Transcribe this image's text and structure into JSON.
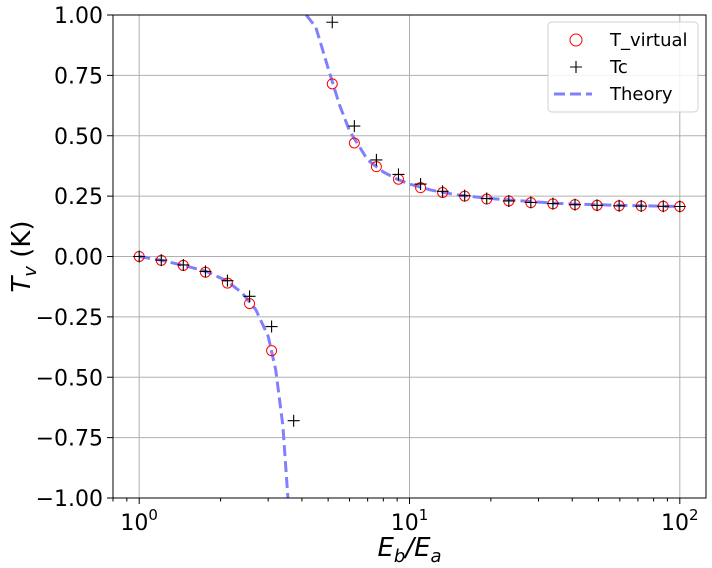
{
  "chart_data": {
    "type": "scatter",
    "xscale": "log",
    "xlim": [
      0.8,
      125
    ],
    "ylim": [
      -1.0,
      1.0
    ],
    "grid": true,
    "legend_position": "top-right",
    "xlabel": {
      "main": "E",
      "sub1": "b",
      "mid": "/E",
      "sub2": "a"
    },
    "ylabel": {
      "main": "T",
      "sub": "v",
      "unit": " (K)"
    },
    "xticks": [
      {
        "value": 1,
        "base": "10",
        "exp": "0"
      },
      {
        "value": 10,
        "base": "10",
        "exp": "1"
      },
      {
        "value": 100,
        "base": "10",
        "exp": "2"
      }
    ],
    "yticks": [
      {
        "value": -1.0,
        "label": "−1.00"
      },
      {
        "value": -0.75,
        "label": "−0.75"
      },
      {
        "value": -0.5,
        "label": "−0.50"
      },
      {
        "value": -0.25,
        "label": "−0.25"
      },
      {
        "value": 0.0,
        "label": "0.00"
      },
      {
        "value": 0.25,
        "label": "0.25"
      },
      {
        "value": 0.5,
        "label": "0.50"
      },
      {
        "value": 0.75,
        "label": "0.75"
      },
      {
        "value": 1.0,
        "label": "1.00"
      }
    ],
    "series": [
      {
        "name": "T_virtual",
        "marker": "circle-open",
        "color": "#ff0000",
        "points": [
          [
            1.0,
            0.0
          ],
          [
            1.207,
            -0.016
          ],
          [
            1.456,
            -0.037
          ],
          [
            1.758,
            -0.065
          ],
          [
            2.121,
            -0.11
          ],
          [
            2.56,
            -0.195
          ],
          [
            3.089,
            -0.39
          ],
          [
            5.179,
            0.715
          ],
          [
            6.251,
            0.47
          ],
          [
            7.543,
            0.372
          ],
          [
            9.103,
            0.32
          ],
          [
            10.99,
            0.285
          ],
          [
            13.26,
            0.265
          ],
          [
            16.0,
            0.25
          ],
          [
            19.31,
            0.238
          ],
          [
            23.3,
            0.23
          ],
          [
            28.12,
            0.223
          ],
          [
            33.93,
            0.218
          ],
          [
            40.95,
            0.215
          ],
          [
            49.42,
            0.212
          ],
          [
            59.64,
            0.21
          ],
          [
            71.97,
            0.209
          ],
          [
            86.85,
            0.208
          ],
          [
            100.0,
            0.207
          ]
        ]
      },
      {
        "name": "Tc",
        "marker": "plus",
        "color": "#000000",
        "points": [
          [
            1.0,
            0.0
          ],
          [
            1.207,
            -0.015
          ],
          [
            1.456,
            -0.035
          ],
          [
            1.758,
            -0.062
          ],
          [
            2.121,
            -0.1
          ],
          [
            2.56,
            -0.165
          ],
          [
            3.089,
            -0.29
          ],
          [
            3.728,
            -0.68
          ],
          [
            5.179,
            0.97
          ],
          [
            6.251,
            0.54
          ],
          [
            7.543,
            0.4
          ],
          [
            9.103,
            0.34
          ],
          [
            10.99,
            0.3
          ],
          [
            13.26,
            0.27
          ],
          [
            16.0,
            0.252
          ],
          [
            19.31,
            0.24
          ],
          [
            23.3,
            0.23
          ],
          [
            28.12,
            0.224
          ],
          [
            33.93,
            0.219
          ],
          [
            40.95,
            0.215
          ],
          [
            49.42,
            0.212
          ],
          [
            59.64,
            0.21
          ],
          [
            71.97,
            0.209
          ],
          [
            86.85,
            0.208
          ],
          [
            100.0,
            0.207
          ]
        ]
      },
      {
        "name": "Theory",
        "line": "dashed",
        "color": "#8080ff",
        "branches": [
          [
            [
              1.0,
              0.0
            ],
            [
              1.2,
              -0.015
            ],
            [
              1.5,
              -0.04
            ],
            [
              1.8,
              -0.065
            ],
            [
              2.1,
              -0.1
            ],
            [
              2.4,
              -0.15
            ],
            [
              2.7,
              -0.22
            ],
            [
              3.0,
              -0.33
            ],
            [
              3.2,
              -0.47
            ],
            [
              3.4,
              -0.7
            ],
            [
              3.55,
              -1.0
            ]
          ],
          [
            [
              4.15,
              1.0
            ],
            [
              4.5,
              0.95
            ],
            [
              5.0,
              0.78
            ],
            [
              5.5,
              0.63
            ],
            [
              6.0,
              0.52
            ],
            [
              7.0,
              0.4
            ],
            [
              8.0,
              0.35
            ],
            [
              9.0,
              0.32
            ],
            [
              10.0,
              0.3
            ],
            [
              12.0,
              0.275
            ],
            [
              15.0,
              0.255
            ],
            [
              20.0,
              0.24
            ],
            [
              30.0,
              0.225
            ],
            [
              40.0,
              0.217
            ],
            [
              60.0,
              0.212
            ],
            [
              80.0,
              0.209
            ],
            [
              100.0,
              0.207
            ]
          ]
        ]
      }
    ]
  }
}
